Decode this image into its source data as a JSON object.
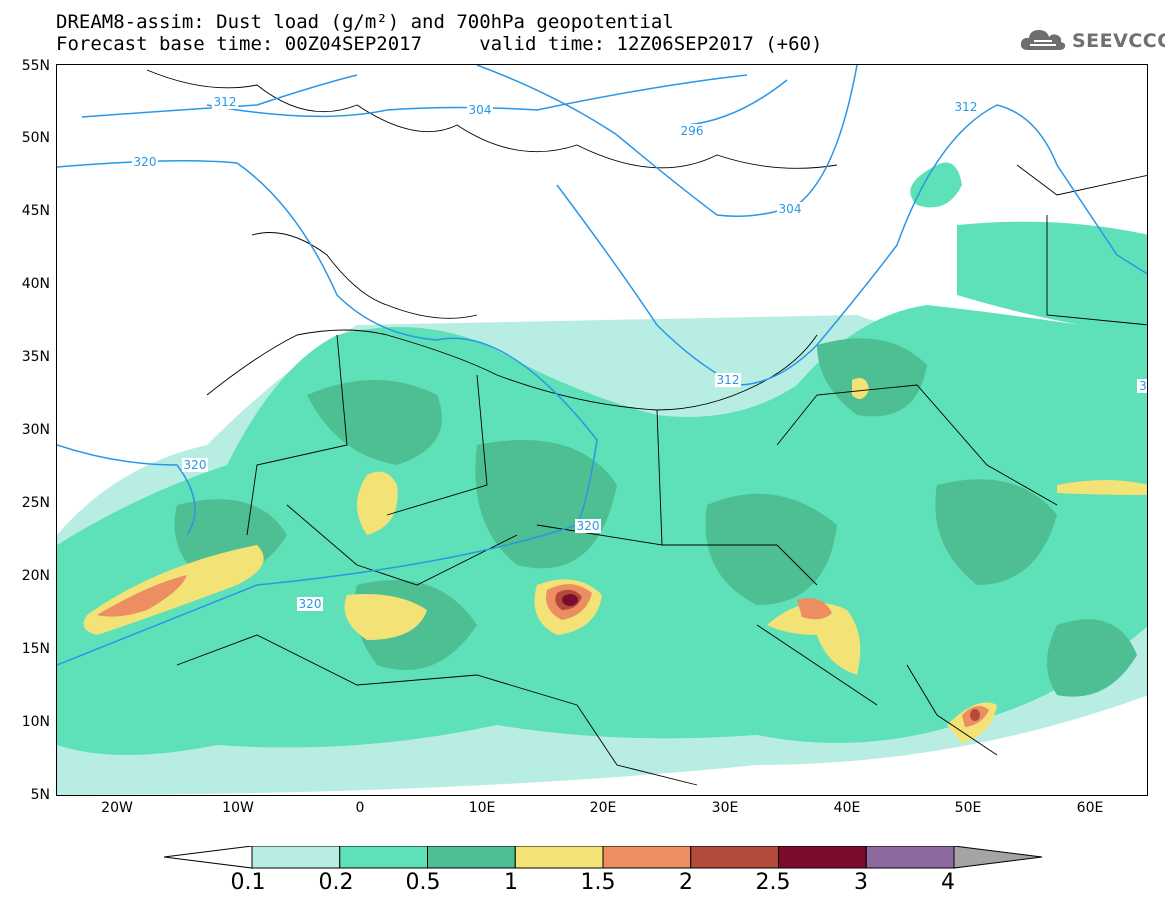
{
  "header": {
    "title_line1": "DREAM8-assim: Dust load (g/m²) and 700hPa geopotential",
    "title_line2": "Forecast base time: 00Z04SEP2017     valid time: 12Z06SEP2017 (+60)",
    "logo_text": "SEEVCCC",
    "logo_icon": "cloud-icon"
  },
  "axes": {
    "lat_labels": [
      "55N",
      "50N",
      "45N",
      "40N",
      "35N",
      "30N",
      "25N",
      "20N",
      "15N",
      "10N",
      "5N"
    ],
    "lon_labels": [
      "20W",
      "10W",
      "0",
      "10E",
      "20E",
      "30E",
      "40E",
      "50E",
      "60E"
    ]
  },
  "contours": {
    "labels": [
      "312",
      "304",
      "296",
      "320",
      "312",
      "312",
      "320",
      "320",
      "320",
      "304",
      "3"
    ]
  },
  "colorbar": {
    "labels": [
      "0.1",
      "0.2",
      "0.5",
      "1",
      "1.5",
      "2",
      "2.5",
      "3",
      "4"
    ],
    "colors": [
      "#b8ede4",
      "#5ee0b8",
      "#4dbf92",
      "#f3e377",
      "#ec8d62",
      "#b34a3b",
      "#7d0b2d",
      "#8c6aa1",
      "#a4a4a4"
    ]
  }
}
